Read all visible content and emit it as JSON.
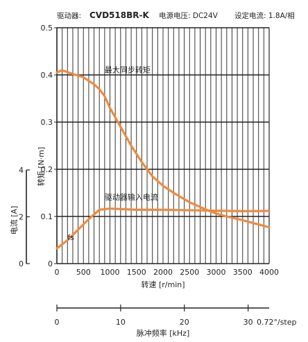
{
  "header": {
    "driver_label": "驱动器:",
    "driver_model": "CVD518BR-K",
    "voltage": "电源电压: DC24V",
    "current_setting": "设定电流: 1.8A/相"
  },
  "chart_data": {
    "type": "line",
    "xlabel": "转速 [r/min]",
    "ylabel": "转矩 [N·m]",
    "y2label": "电流 [A]",
    "x2label": "脉冲频率 [kHz]",
    "x2_unit_note": "0.72°/step",
    "xlim": [
      0,
      4000
    ],
    "ylim": [
      0,
      0.5
    ],
    "y2lim": [
      0,
      4
    ],
    "x2lim": [
      0,
      33.3
    ],
    "x_ticks": [
      0,
      500,
      1000,
      1500,
      2000,
      2500,
      3000,
      3500,
      4000
    ],
    "y_ticks": [
      0,
      0.1,
      0.2,
      0.3,
      0.4,
      0.5
    ],
    "y_tick_labels": [
      "0",
      "0.1",
      "0.2",
      "0.3",
      "0.4",
      "0.5"
    ],
    "y2_ticks": [
      0,
      2,
      4
    ],
    "x2_ticks": [
      0,
      10,
      20,
      30
    ],
    "grid": true,
    "series": [
      {
        "name": "最大同步转矩",
        "axis": "left",
        "color": "#f08a3c",
        "x": [
          0,
          100,
          300,
          500,
          700,
          800,
          900,
          1000,
          1200,
          1400,
          1600,
          1800,
          2000,
          2200,
          2500,
          2800,
          3000,
          3200,
          3500,
          3800,
          4000
        ],
        "y": [
          0.405,
          0.41,
          0.402,
          0.395,
          0.38,
          0.37,
          0.355,
          0.33,
          0.29,
          0.25,
          0.215,
          0.185,
          0.165,
          0.15,
          0.13,
          0.115,
          0.106,
          0.1,
          0.092,
          0.083,
          0.077
        ]
      },
      {
        "name": "驱动器输入电流",
        "axis": "right",
        "color": "#f08a3c",
        "x": [
          0,
          200,
          400,
          600,
          700,
          800,
          1000,
          1500,
          2000,
          2500,
          3000,
          3500,
          4000
        ],
        "y": [
          0.65,
          1.0,
          1.45,
          1.9,
          2.1,
          2.3,
          2.35,
          2.3,
          2.3,
          2.28,
          2.26,
          2.24,
          2.25
        ]
      }
    ],
    "annotations": [
      {
        "text": "最大同步转矩",
        "x": 900,
        "y": 0.405
      },
      {
        "text": "驱动器输入电流",
        "x": 900,
        "y": 0.135
      },
      {
        "text": "fs",
        "x": 200,
        "y": 0.05
      }
    ]
  }
}
